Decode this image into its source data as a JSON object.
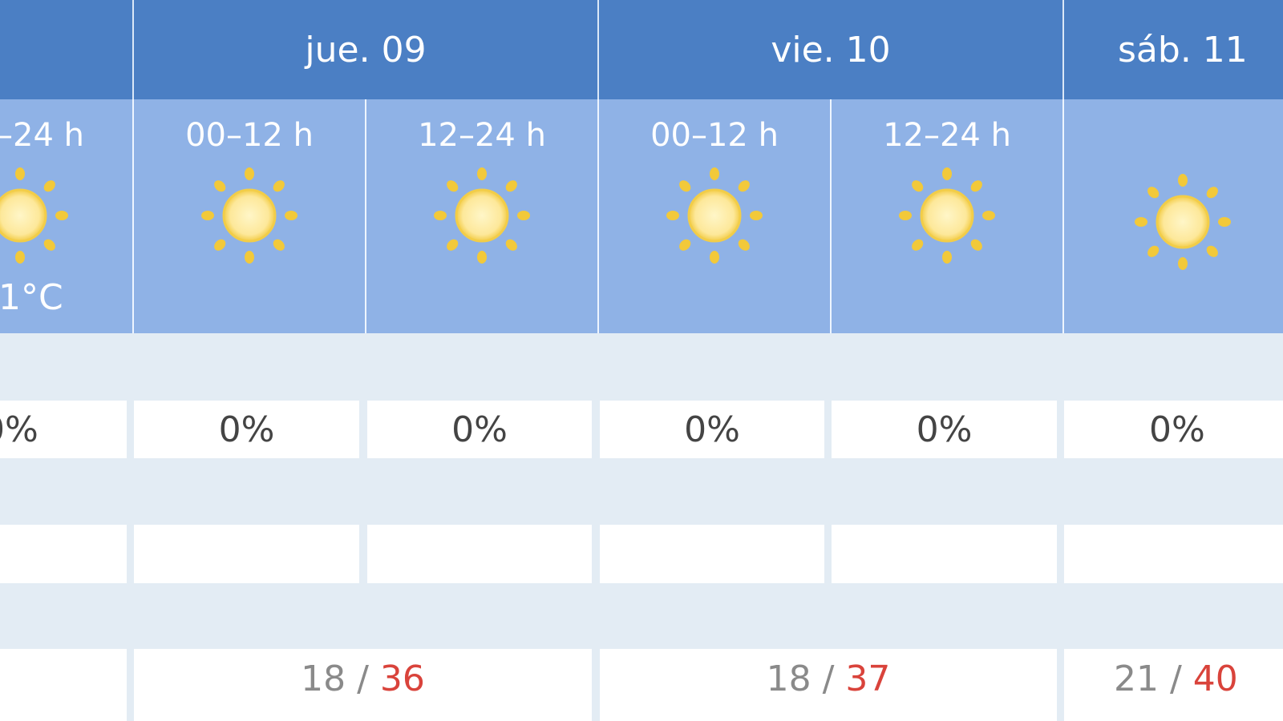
{
  "days": [
    {
      "label": "jue. 09",
      "temp_min": "18",
      "temp_max": "36"
    },
    {
      "label": "vie. 10",
      "temp_min": "18",
      "temp_max": "37"
    },
    {
      "label": "sáb. 11",
      "temp_min": "21",
      "temp_max": "40"
    }
  ],
  "periods": [
    {
      "label": "–24 h",
      "icon": "sun-icon",
      "temp": "1°C",
      "precip": "0%"
    },
    {
      "label": "00–12 h",
      "icon": "sun-icon",
      "precip": "0%"
    },
    {
      "label": "12–24 h",
      "icon": "sun-icon",
      "precip": "0%"
    },
    {
      "label": "00–12 h",
      "icon": "sun-icon",
      "precip": "0%"
    },
    {
      "label": "12–24 h",
      "icon": "sun-icon",
      "precip": "0%"
    },
    {
      "label": "",
      "icon": "sun-icon",
      "precip": "0%"
    }
  ],
  "separator": " / ",
  "colors": {
    "header": "#4b7fc4",
    "subheader": "#8fb2e6",
    "row_bg": "#e3ecf4",
    "max_temp": "#d9433b",
    "min_temp": "#8a8a8a"
  }
}
